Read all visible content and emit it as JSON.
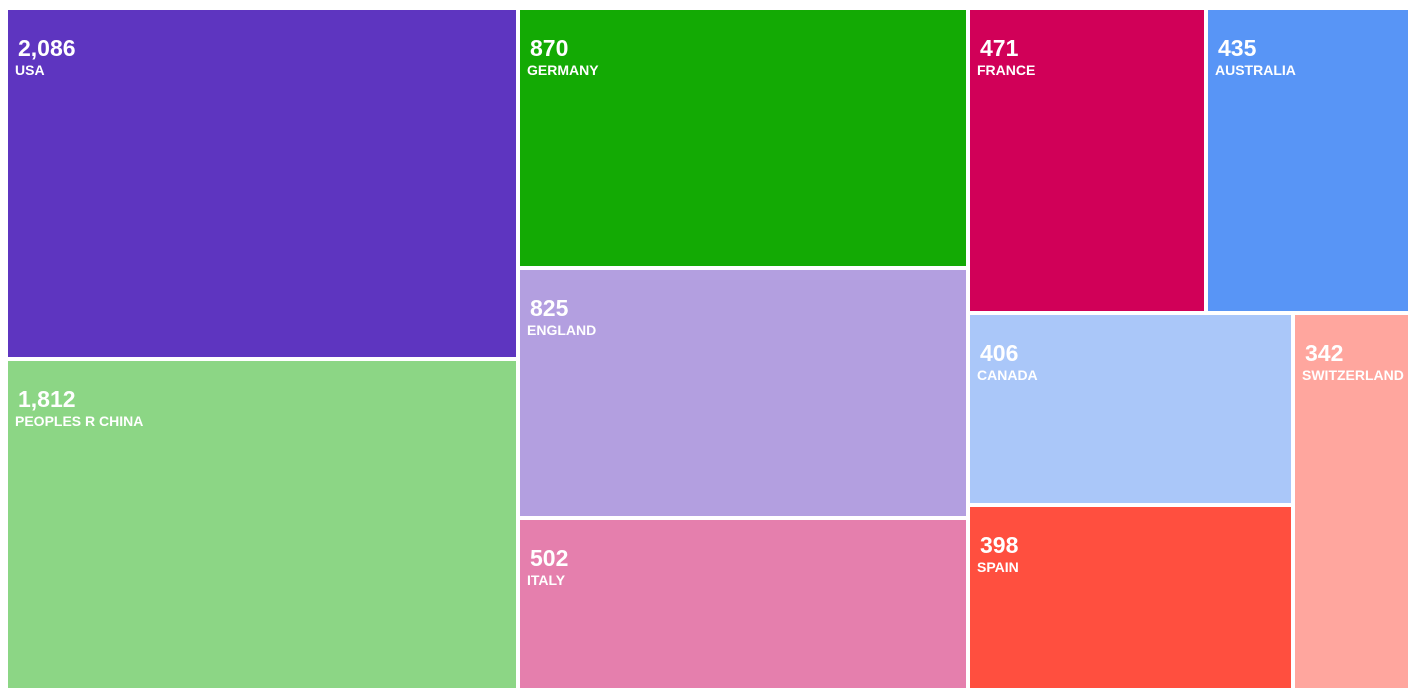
{
  "chart_data": {
    "type": "treemap",
    "items": [
      {
        "label": "USA",
        "value": 2086,
        "value_text": "2,086",
        "color": "#5e35c0"
      },
      {
        "label": "PEOPLES R CHINA",
        "value": 1812,
        "value_text": "1,812",
        "color": "#8cd685"
      },
      {
        "label": "GERMANY",
        "value": 870,
        "value_text": "870",
        "color": "#13aa04"
      },
      {
        "label": "ENGLAND",
        "value": 825,
        "value_text": "825",
        "color": "#b39fe0"
      },
      {
        "label": "ITALY",
        "value": 502,
        "value_text": "502",
        "color": "#e57fad"
      },
      {
        "label": "FRANCE",
        "value": 471,
        "value_text": "471",
        "color": "#d10058"
      },
      {
        "label": "AUSTRALIA",
        "value": 435,
        "value_text": "435",
        "color": "#5895f6"
      },
      {
        "label": "CANADA",
        "value": 406,
        "value_text": "406",
        "color": "#aac7f9"
      },
      {
        "label": "SPAIN",
        "value": 398,
        "value_text": "398",
        "color": "#ff4f3f"
      },
      {
        "label": "SWITZERLAND",
        "value": 342,
        "value_text": "342",
        "color": "#ffa69e"
      }
    ]
  }
}
